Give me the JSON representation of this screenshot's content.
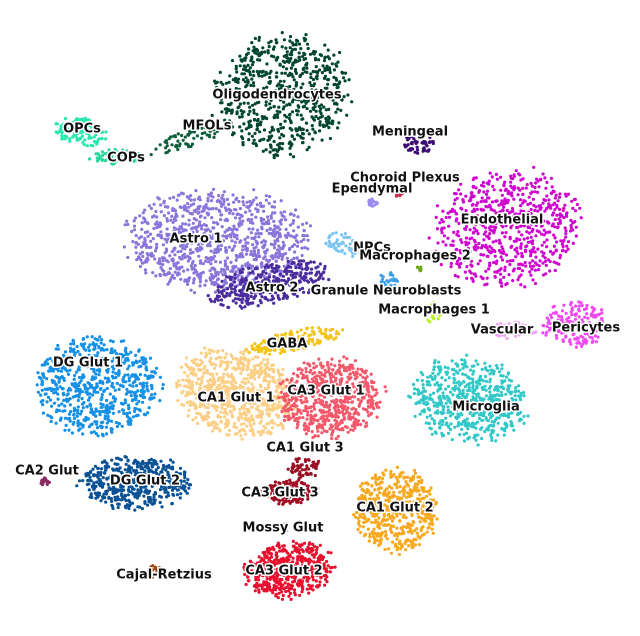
{
  "chart_data": {
    "type": "scatter",
    "title": "",
    "xlabel": "",
    "ylabel": "",
    "grid": false,
    "legend": "none",
    "clusters": [
      {
        "name": "Oligodendrocytes",
        "color": "#02462e"
      },
      {
        "name": "OPCs",
        "color": "#2ae8ae"
      },
      {
        "name": "MFOLs",
        "color": "#0f5e3c"
      },
      {
        "name": "COPs",
        "color": "#27d69c"
      },
      {
        "name": "Meningeal",
        "color": "#3b0a72"
      },
      {
        "name": "Choroid Plexus",
        "color": "#d22a4e"
      },
      {
        "name": "Ependymal",
        "color": "#9c8cf2"
      },
      {
        "name": "Endothelial",
        "color": "#cf06cf"
      },
      {
        "name": "Astro 1",
        "color": "#8a76da"
      },
      {
        "name": "Astro 2",
        "color": "#4a2c9f"
      },
      {
        "name": "NPCs",
        "color": "#7cc4f2"
      },
      {
        "name": "Macrophages 2",
        "color": "#6aa81a"
      },
      {
        "name": "Granule Neuroblasts",
        "color": "#3aa0ea"
      },
      {
        "name": "Macrophages 1",
        "color": "#b8f020"
      },
      {
        "name": "Vascular",
        "color": "#f0a2f0"
      },
      {
        "name": "Pericytes",
        "color": "#f248f2"
      },
      {
        "name": "GABA",
        "color": "#f4c417"
      },
      {
        "name": "DG Glut 1",
        "color": "#1490e6"
      },
      {
        "name": "CA1 Glut 1",
        "color": "#fccf86"
      },
      {
        "name": "CA3 Glut 1",
        "color": "#f25a6c"
      },
      {
        "name": "Microglia",
        "color": "#32c8c8"
      },
      {
        "name": "CA1 Glut 3",
        "color": "#9a1024"
      },
      {
        "name": "CA2 Glut",
        "color": "#8a2a62"
      },
      {
        "name": "DG Glut 2",
        "color": "#0a5294"
      },
      {
        "name": "CA3 Glut 3",
        "color": "#a00c22"
      },
      {
        "name": "CA1 Glut 2",
        "color": "#f8a81e"
      },
      {
        "name": "Mossy Glut",
        "color": "#aab4e8"
      },
      {
        "name": "CA3 Glut 2",
        "color": "#e8102e"
      },
      {
        "name": "Cajal-Retzius",
        "color": "#a3470e"
      }
    ]
  }
}
